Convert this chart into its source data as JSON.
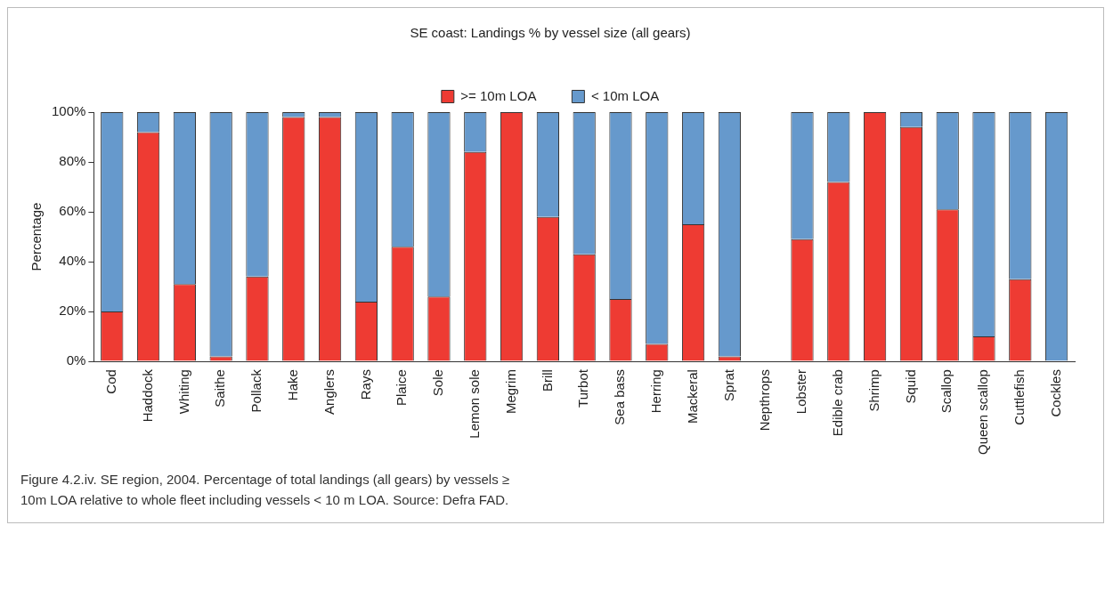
{
  "chart_data": {
    "type": "bar",
    "title": "SE coast: Landings % by vessel size (all gears)",
    "categories": [
      "Cod",
      "Haddock",
      "Whiting",
      "Saithe",
      "Pollack",
      "Hake",
      "Anglers",
      "Rays",
      "Plaice",
      "Sole",
      "Lemon sole",
      "Megrim",
      "Brill",
      "Turbot",
      "Sea bass",
      "Herring",
      "Mackeral",
      "Sprat",
      "Nepthrops",
      "Lobster",
      "Edible crab",
      "Shrimp",
      "Squid",
      "Scallop",
      "Queen scallop",
      "Cuttlefish",
      "Cockles"
    ],
    "series": [
      {
        "name": ">= 10m LOA",
        "color": "#ee3b33",
        "values": [
          20,
          92,
          31,
          2,
          34,
          98,
          98,
          24,
          46,
          26,
          84,
          100,
          58,
          43,
          25,
          7,
          55,
          2,
          null,
          49,
          72,
          100,
          94,
          61,
          10,
          33,
          0
        ]
      },
      {
        "name": "< 10m LOA",
        "color": "#6699cc",
        "values": [
          80,
          8,
          69,
          98,
          66,
          2,
          2,
          76,
          54,
          74,
          16,
          0,
          42,
          57,
          75,
          93,
          45,
          98,
          null,
          51,
          28,
          0,
          6,
          39,
          90,
          67,
          100
        ]
      }
    ],
    "stacked": true,
    "ylabel": "Percentage",
    "ylim": [
      0,
      100
    ],
    "yticks": [
      {
        "value": 0,
        "label": "0%"
      },
      {
        "value": 20,
        "label": "20%"
      },
      {
        "value": 40,
        "label": "40%"
      },
      {
        "value": 60,
        "label": "60%"
      },
      {
        "value": 80,
        "label": "80%"
      },
      {
        "value": 100,
        "label": "100%"
      }
    ],
    "legend": "top",
    "grid": false,
    "annotations": [
      "Figure 4.2.iv.  SE region, 2004.  Percentage of total landings (all gears) by vessels ≥ 10m LOA relative to whole fleet including vessels < 10 m LOA.  Source: Defra FAD."
    ]
  }
}
